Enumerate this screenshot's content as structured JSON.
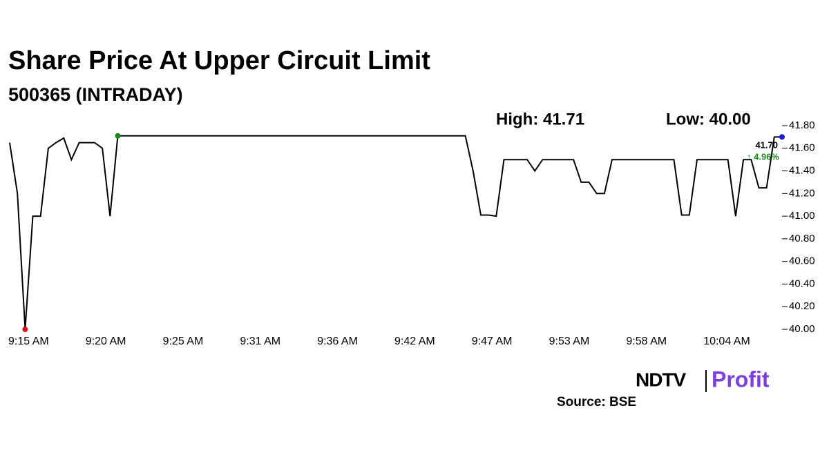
{
  "chart_data": {
    "type": "line",
    "title": "Share Price At Upper Circuit Limit",
    "subtitle": "500365 (INTRADAY)",
    "high_label": "High: 41.71",
    "low_label": "Low: 40.00",
    "last_label": "41.70",
    "change_label": "↑ 4.96%",
    "source": "Source: BSE",
    "brand": [
      "NDTV",
      "Profit"
    ],
    "categories": [
      "9:15 AM",
      null,
      null,
      null,
      null,
      null,
      null,
      null,
      null,
      null,
      "9:20 AM",
      null,
      null,
      null,
      null,
      null,
      null,
      null,
      null,
      null,
      "9:25 AM",
      null,
      null,
      null,
      null,
      null,
      null,
      null,
      null,
      null,
      "9:31 AM",
      null,
      null,
      null,
      null,
      null,
      null,
      null,
      null,
      null,
      "9:36 AM",
      null,
      null,
      null,
      null,
      null,
      null,
      null,
      null,
      null,
      "9:42 AM",
      null,
      null,
      null,
      null,
      null,
      null,
      null,
      null,
      null,
      "9:47 AM",
      null,
      null,
      null,
      null,
      null,
      null,
      null,
      null,
      null,
      "9:53 AM",
      null,
      null,
      null,
      null,
      null,
      null,
      null,
      null,
      null,
      "9:58 AM",
      null,
      null,
      null,
      null,
      null,
      null,
      null,
      null,
      null,
      "10:04 AM",
      null,
      null,
      null,
      null,
      null,
      null,
      null,
      null,
      null,
      null
    ],
    "values": [
      41.65,
      41.2,
      40.0,
      41.0,
      41.0,
      41.6,
      41.65,
      41.69,
      41.5,
      41.65,
      41.65,
      41.65,
      41.6,
      41.0,
      41.71,
      41.71,
      41.71,
      41.71,
      41.71,
      41.71,
      41.71,
      41.71,
      41.71,
      41.71,
      41.71,
      41.71,
      41.71,
      41.71,
      41.71,
      41.71,
      41.71,
      41.71,
      41.71,
      41.71,
      41.71,
      41.71,
      41.71,
      41.71,
      41.71,
      41.71,
      41.71,
      41.71,
      41.71,
      41.71,
      41.71,
      41.71,
      41.71,
      41.71,
      41.71,
      41.71,
      41.71,
      41.71,
      41.71,
      41.71,
      41.71,
      41.71,
      41.71,
      41.71,
      41.71,
      41.71,
      41.4,
      41.01,
      41.01,
      41.0,
      41.5,
      41.5,
      41.5,
      41.5,
      41.4,
      41.5,
      41.5,
      41.5,
      41.5,
      41.5,
      41.3,
      41.3,
      41.2,
      41.2,
      41.5,
      41.5,
      41.5,
      41.5,
      41.5,
      41.5,
      41.5,
      41.5,
      41.5,
      41.01,
      41.01,
      41.5,
      41.5,
      41.5,
      41.5,
      41.5,
      41.0,
      41.5,
      41.5,
      41.25,
      41.25,
      41.7,
      41.7
    ],
    "color": "#000000",
    "high_index": 14,
    "low_index": 2,
    "marker_colors": {
      "high": "#1a8a1a",
      "low": "#e01010",
      "last": "#1a1ad0"
    },
    "ylim": [
      40.0,
      41.8
    ],
    "yticks": [
      {
        "value": 40.0,
        "label": "40.00"
      },
      {
        "value": 40.2,
        "label": "40.20"
      },
      {
        "value": 40.4,
        "label": "40.40"
      },
      {
        "value": 40.6,
        "label": "40.60"
      },
      {
        "value": 40.8,
        "label": "40.80"
      },
      {
        "value": 41.0,
        "label": "41.00"
      },
      {
        "value": 41.2,
        "label": "41.20"
      },
      {
        "value": 41.4,
        "label": "41.40"
      },
      {
        "value": 41.6,
        "label": "41.60"
      },
      {
        "value": 41.8,
        "label": "41.80"
      }
    ],
    "grid": false
  }
}
